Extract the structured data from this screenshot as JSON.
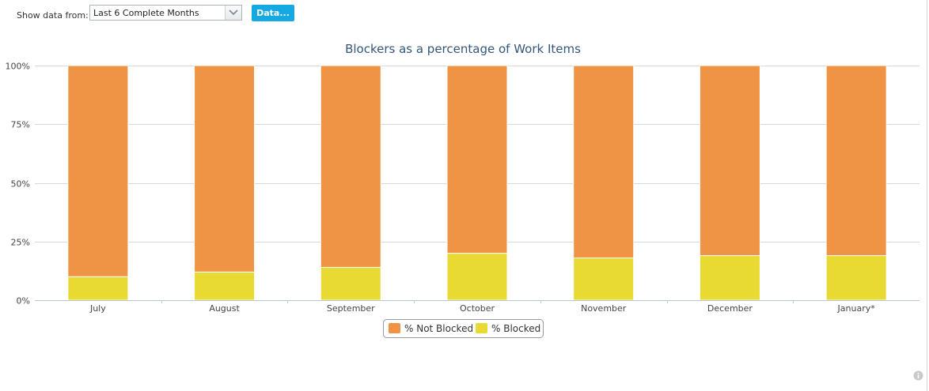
{
  "toolbar": {
    "label": "Show data from:",
    "range_select": {
      "value": "Last 6 Complete Months"
    },
    "data_button": "Data..."
  },
  "chart_data": {
    "type": "bar",
    "stacked": true,
    "title": "Blockers as a percentage of Work Items",
    "xlabel": "",
    "ylabel": "",
    "categories": [
      "July",
      "August",
      "September",
      "October",
      "November",
      "December",
      "January*"
    ],
    "series": [
      {
        "name": "% Not Blocked",
        "color": "#ee9444",
        "values": [
          90,
          88,
          86,
          80,
          82,
          81,
          81
        ]
      },
      {
        "name": "% Blocked",
        "color": "#e8da33",
        "values": [
          10,
          12,
          14,
          20,
          18,
          19,
          19
        ]
      }
    ],
    "ylim": [
      0,
      100
    ],
    "yticks": [
      "0%",
      "25%",
      "50%",
      "75%",
      "100%"
    ],
    "grid": true,
    "legend": "bottom-center"
  },
  "colors": {
    "button": "#14a9e0",
    "title": "#34567a"
  },
  "icons": {
    "dropdown": "chevron-down-icon",
    "info": "info-icon"
  }
}
